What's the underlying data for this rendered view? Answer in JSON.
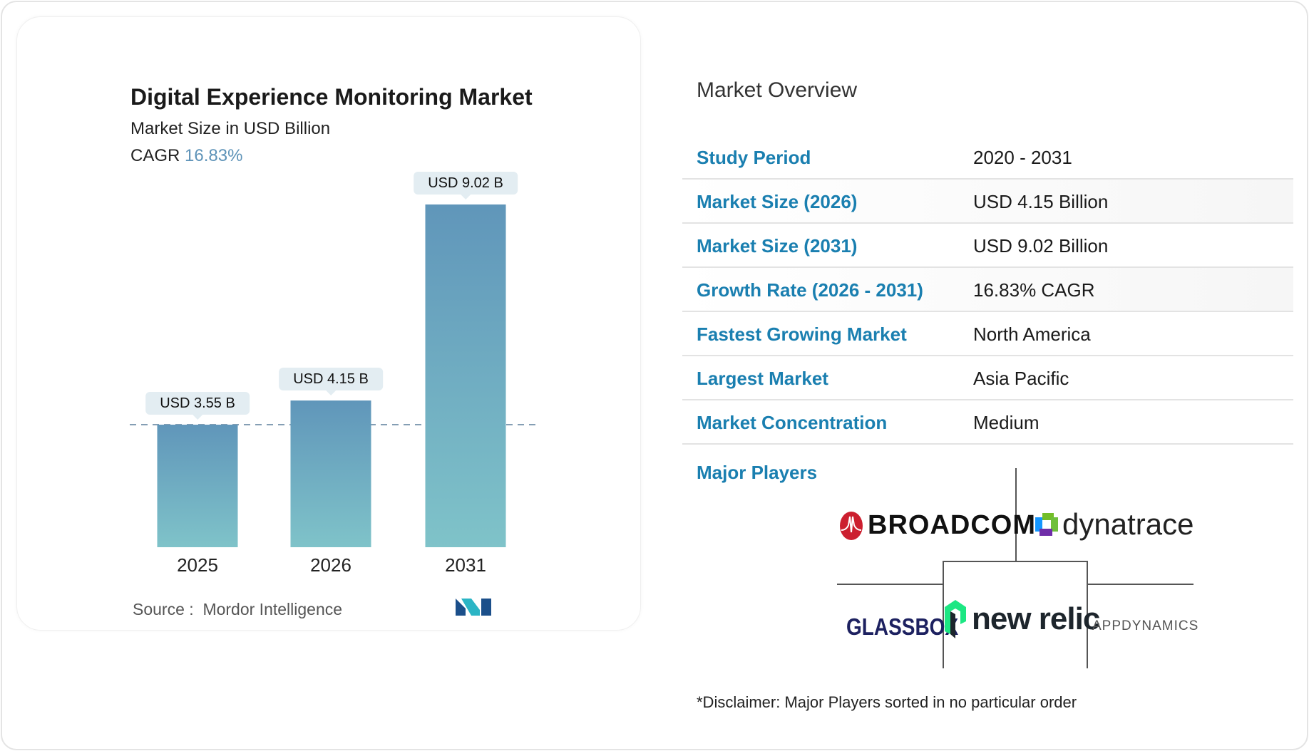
{
  "chart_data": {
    "type": "bar",
    "title": "Digital Experience Monitoring Market",
    "subtitle": "Market Size in USD Billion",
    "cagr_label": "CAGR",
    "cagr_value": "16.83%",
    "categories": [
      "2025",
      "2026",
      "2031"
    ],
    "values": [
      3.55,
      4.15,
      9.02
    ],
    "data_labels": [
      "USD 3.55 B",
      "USD 4.15 B",
      "USD 9.02 B"
    ],
    "bar_color_top": "#6096ba",
    "bar_color_bottom": "#7fc3c9",
    "reference_line": "dashed at first bar value",
    "source_label": "Source :",
    "source": "Mordor Intelligence",
    "logo_text": "MI"
  },
  "overview": {
    "title": "Market Overview",
    "rows": [
      {
        "label": "Study Period",
        "value": "2020 - 2031"
      },
      {
        "label": "Market Size (2026)",
        "value": "USD 4.15 Billion"
      },
      {
        "label": "Market Size (2031)",
        "value": "USD 9.02 Billion"
      },
      {
        "label": "Growth Rate (2026 - 2031)",
        "value": "16.83% CAGR"
      },
      {
        "label": "Fastest Growing Market",
        "value": "North America"
      },
      {
        "label": "Largest Market",
        "value": "Asia Pacific"
      },
      {
        "label": "Market Concentration",
        "value": "Medium"
      }
    ],
    "label_color": "#1a7fb0",
    "major_players_label": "Major Players",
    "players": [
      "BROADCOM",
      "dynatrace",
      "GLASSBOX",
      "new relic",
      "APPDYNAMICS"
    ],
    "disclaimer": "*Disclaimer: Major Players sorted in no particular order"
  }
}
